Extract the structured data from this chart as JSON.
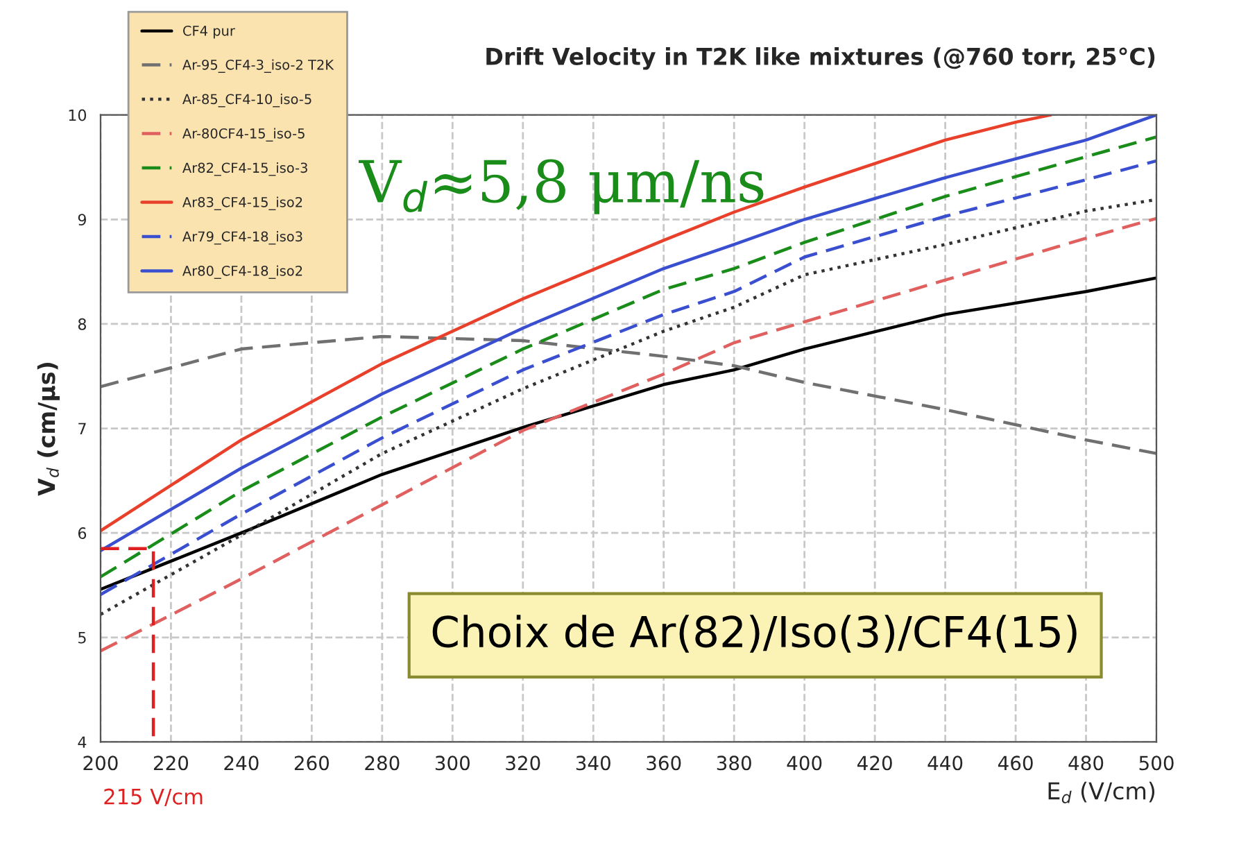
{
  "chart_data": {
    "type": "line",
    "title": "Drift Velocity in T2K like mixtures (@760 torr, 25°C)",
    "xlabel": "E$_{d}$ (V/cm)",
    "ylabel": "V$_{d}$ (cm/μs)",
    "xlim": [
      200,
      500
    ],
    "ylim": [
      4,
      10
    ],
    "xticks": [
      200,
      220,
      240,
      260,
      280,
      300,
      320,
      340,
      360,
      380,
      400,
      420,
      440,
      460,
      480,
      500
    ],
    "yticks": [
      4,
      5,
      6,
      7,
      8,
      9,
      10
    ],
    "grid": true,
    "legend": "top left",
    "series": [
      {
        "name": "CF4 pur",
        "color": "#000000",
        "line_style": "solid",
        "x": [
          200,
          240,
          280,
          320,
          360,
          380,
          400,
          440,
          480,
          500
        ],
        "values": [
          5.46,
          6.0,
          6.56,
          7.01,
          7.42,
          7.56,
          7.76,
          8.09,
          8.31,
          8.44
        ]
      },
      {
        "name": "Ar-95_CF4-3_iso-2 T2K",
        "color": "#707070",
        "line_style": "dashed",
        "x": [
          200,
          240,
          280,
          320,
          360,
          380,
          400,
          440,
          480,
          500
        ],
        "values": [
          7.4,
          7.76,
          7.88,
          7.84,
          7.69,
          7.6,
          7.44,
          7.18,
          6.89,
          6.76
        ]
      },
      {
        "name": "Ar-85_CF4-10_iso-5",
        "color": "#333333",
        "line_style": "dotted",
        "x": [
          200,
          240,
          280,
          320,
          360,
          380,
          400,
          440,
          480,
          500
        ],
        "values": [
          5.22,
          5.98,
          6.76,
          7.38,
          7.93,
          8.16,
          8.47,
          8.76,
          9.08,
          9.19
        ]
      },
      {
        "name": "Ar-80CF4-15_iso-5",
        "color": "#e06060",
        "line_style": "dashed",
        "x": [
          200,
          240,
          280,
          320,
          360,
          380,
          400,
          440,
          480,
          500
        ],
        "values": [
          4.87,
          5.56,
          6.27,
          6.98,
          7.52,
          7.82,
          8.02,
          8.42,
          8.82,
          9.01
        ]
      },
      {
        "name": "Ar82_CF4-15_iso-3",
        "color": "#1a8c1a",
        "line_style": "dashed",
        "x": [
          200,
          240,
          280,
          320,
          360,
          380,
          400,
          440,
          480,
          500
        ],
        "values": [
          5.58,
          6.4,
          7.11,
          7.76,
          8.33,
          8.53,
          8.78,
          9.22,
          9.6,
          9.79
        ]
      },
      {
        "name": "Ar83_CF4-15_iso2",
        "color": "#e8402a",
        "line_style": "solid",
        "x": [
          200,
          240,
          280,
          320,
          360,
          380,
          400,
          440,
          460,
          470
        ],
        "values": [
          6.02,
          6.89,
          7.62,
          8.24,
          8.8,
          9.07,
          9.31,
          9.76,
          9.93,
          10.0
        ]
      },
      {
        "name": "Ar79_CF4-18_iso3",
        "color": "#3a4fd0",
        "line_style": "dashed",
        "x": [
          200,
          240,
          280,
          320,
          360,
          380,
          400,
          440,
          480,
          500
        ],
        "values": [
          5.41,
          6.18,
          6.91,
          7.56,
          8.09,
          8.31,
          8.64,
          9.03,
          9.38,
          9.56
        ]
      },
      {
        "name": "Ar80_CF4-18_iso2",
        "color": "#3a4fd0",
        "line_style": "solid",
        "x": [
          200,
          240,
          280,
          320,
          360,
          380,
          400,
          440,
          480,
          500
        ],
        "values": [
          5.83,
          6.62,
          7.33,
          7.96,
          8.53,
          8.76,
          9.0,
          9.4,
          9.76,
          10.0
        ]
      },
      {
        "type": "line",
        "color": "#e02020",
        "line_style": "dashed",
        "x": [
          200,
          215,
          215
        ],
        "values": [
          5.85,
          5.85,
          4
        ]
      }
    ],
    "annotations": [
      "V$_{d}$≈5,8 μm/ns",
      "Choix de Ar(82)/Iso(3)/CF4(15)",
      {
        "text": "215 V/cm",
        "x": 215,
        "y": 4
      }
    ]
  }
}
